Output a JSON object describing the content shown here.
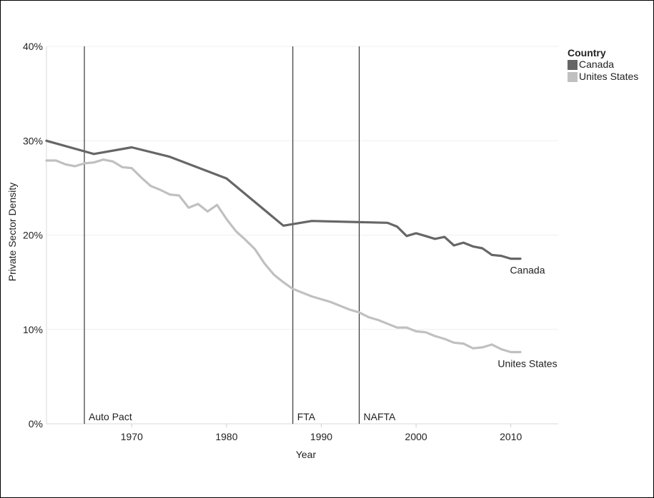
{
  "chart_data": {
    "type": "line",
    "xlabel": "Year",
    "ylabel": "Private Sector Density",
    "xlim": [
      1961,
      2015
    ],
    "ylim": [
      0,
      40
    ],
    "x_ticks": [
      1970,
      1980,
      1990,
      2000,
      2010
    ],
    "x_tick_labels": [
      "1970",
      "1980",
      "1990",
      "2000",
      "2010"
    ],
    "y_ticks": [
      0,
      10,
      20,
      30,
      40
    ],
    "y_tick_labels": [
      "0%",
      "10%",
      "20%",
      "30%",
      "40%"
    ],
    "grid": true,
    "legend": {
      "title": "Country",
      "placement": "top-right",
      "entries": [
        "Canada",
        "Unites States"
      ]
    },
    "series": [
      {
        "name": "Canada",
        "color": "#666666",
        "end_label": "Canada",
        "x": [
          1961,
          1966,
          1970,
          1974,
          1980,
          1986,
          1989,
          1997,
          1998,
          1999,
          2000,
          2001,
          2002,
          2003,
          2004,
          2005,
          2006,
          2007,
          2008,
          2009,
          2010,
          2011
        ],
        "y": [
          30.0,
          28.6,
          29.3,
          28.3,
          26.0,
          21.0,
          21.5,
          21.3,
          20.9,
          19.9,
          20.2,
          19.9,
          19.6,
          19.8,
          18.9,
          19.2,
          18.8,
          18.6,
          17.9,
          17.8,
          17.5,
          17.5
        ]
      },
      {
        "name": "Unites States",
        "color": "#c0c0c0",
        "end_label": "Unites States",
        "x": [
          1961,
          1962,
          1963,
          1964,
          1965,
          1966,
          1967,
          1968,
          1969,
          1970,
          1971,
          1972,
          1973,
          1974,
          1975,
          1976,
          1977,
          1978,
          1979,
          1980,
          1981,
          1982,
          1983,
          1984,
          1985,
          1986,
          1987,
          1988,
          1989,
          1990,
          1991,
          1992,
          1993,
          1994,
          1995,
          1996,
          1997,
          1998,
          1999,
          2000,
          2001,
          2002,
          2003,
          2004,
          2005,
          2006,
          2007,
          2008,
          2009,
          2010,
          2011
        ],
        "y": [
          27.9,
          27.9,
          27.5,
          27.3,
          27.6,
          27.7,
          28.0,
          27.8,
          27.2,
          27.1,
          26.1,
          25.2,
          24.8,
          24.3,
          24.2,
          22.9,
          23.3,
          22.5,
          23.2,
          21.7,
          20.4,
          19.5,
          18.5,
          17.0,
          15.8,
          15.0,
          14.3,
          13.9,
          13.5,
          13.2,
          12.9,
          12.5,
          12.1,
          11.8,
          11.3,
          11.0,
          10.6,
          10.2,
          10.2,
          9.8,
          9.7,
          9.3,
          9.0,
          8.6,
          8.5,
          8.0,
          8.1,
          8.4,
          7.9,
          7.6,
          7.6
        ]
      }
    ],
    "annotations": [
      {
        "x": 1965,
        "label": "Auto Pact"
      },
      {
        "x": 1987,
        "label": "FTA"
      },
      {
        "x": 1994,
        "label": "NAFTA"
      }
    ]
  }
}
